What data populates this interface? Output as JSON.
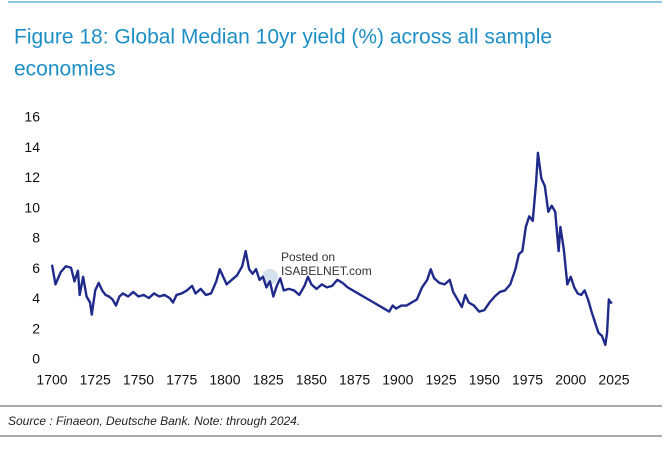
{
  "chart_data": {
    "type": "line",
    "title": "Figure 18: Global Median 10yr yield (%) across all sample economies",
    "source": "Source : Finaeon, Deutsche Bank. Note: through 2024.",
    "watermark": [
      "Posted on",
      "ISABELNET.com"
    ],
    "color": "#1f2a8a",
    "x": [
      1700,
      1702,
      1705,
      1708,
      1711,
      1713,
      1715,
      1716,
      1718,
      1720,
      1722,
      1723,
      1725,
      1727,
      1729,
      1731,
      1733,
      1735,
      1737,
      1739,
      1741,
      1744,
      1747,
      1750,
      1753,
      1756,
      1759,
      1762,
      1765,
      1768,
      1770,
      1772,
      1775,
      1778,
      1781,
      1783,
      1786,
      1789,
      1792,
      1795,
      1797,
      1799,
      1801,
      1804,
      1807,
      1810,
      1812,
      1814,
      1816,
      1818,
      1820,
      1822,
      1824,
      1826,
      1828,
      1830,
      1832,
      1834,
      1837,
      1840,
      1843,
      1846,
      1848,
      1850,
      1853,
      1856,
      1859,
      1862,
      1865,
      1868,
      1871,
      1874,
      1877,
      1880,
      1883,
      1886,
      1889,
      1892,
      1895,
      1897,
      1899,
      1902,
      1905,
      1908,
      1911,
      1914,
      1917,
      1919,
      1921,
      1924,
      1927,
      1930,
      1932,
      1935,
      1937,
      1939,
      1941,
      1944,
      1947,
      1950,
      1953,
      1956,
      1959,
      1962,
      1965,
      1968,
      1970,
      1972,
      1974,
      1976,
      1978,
      1980,
      1981,
      1983,
      1985,
      1987,
      1989,
      1991,
      1993,
      1994,
      1996,
      1998,
      2000,
      2002,
      2004,
      2006,
      2008,
      2010,
      2012,
      2014,
      2016,
      2018,
      2020,
      2021,
      2022,
      2023,
      2024
    ],
    "values": [
      6.3,
      5.0,
      5.8,
      6.2,
      6.1,
      5.2,
      5.9,
      4.3,
      5.5,
      4.2,
      3.8,
      3.0,
      4.6,
      5.1,
      4.6,
      4.3,
      4.2,
      4.0,
      3.6,
      4.2,
      4.4,
      4.2,
      4.5,
      4.2,
      4.3,
      4.1,
      4.4,
      4.2,
      4.3,
      4.1,
      3.8,
      4.3,
      4.4,
      4.6,
      4.9,
      4.4,
      4.7,
      4.3,
      4.4,
      5.2,
      6.0,
      5.5,
      5.0,
      5.3,
      5.6,
      6.2,
      7.2,
      6.0,
      5.7,
      6.0,
      5.3,
      5.5,
      4.8,
      5.2,
      4.2,
      4.9,
      5.4,
      4.6,
      4.7,
      4.6,
      4.3,
      4.9,
      5.5,
      5.0,
      4.7,
      5.0,
      4.8,
      4.9,
      5.3,
      5.1,
      4.8,
      4.6,
      4.4,
      4.2,
      4.0,
      3.8,
      3.6,
      3.4,
      3.2,
      3.6,
      3.4,
      3.6,
      3.6,
      3.8,
      4.0,
      4.8,
      5.3,
      6.0,
      5.4,
      5.1,
      5.0,
      5.3,
      4.5,
      3.9,
      3.5,
      4.3,
      3.8,
      3.6,
      3.2,
      3.3,
      3.8,
      4.2,
      4.5,
      4.6,
      5.0,
      6.0,
      7.0,
      7.2,
      8.8,
      9.5,
      9.2,
      11.8,
      13.7,
      12.0,
      11.5,
      9.8,
      10.2,
      9.8,
      7.2,
      8.8,
      7.3,
      5.0,
      5.5,
      4.8,
      4.4,
      4.3,
      4.6,
      4.0,
      3.2,
      2.5,
      1.8,
      1.6,
      1.0,
      1.8,
      4.0,
      3.8,
      3.8
    ],
    "xlim": [
      1700,
      2025
    ],
    "xticks": [
      1700,
      1725,
      1750,
      1775,
      1800,
      1825,
      1850,
      1875,
      1900,
      1925,
      1950,
      1975,
      2000,
      2025
    ],
    "ylim": [
      0,
      16
    ],
    "yticks": [
      0,
      2,
      4,
      6,
      8,
      10,
      12,
      14,
      16
    ]
  }
}
